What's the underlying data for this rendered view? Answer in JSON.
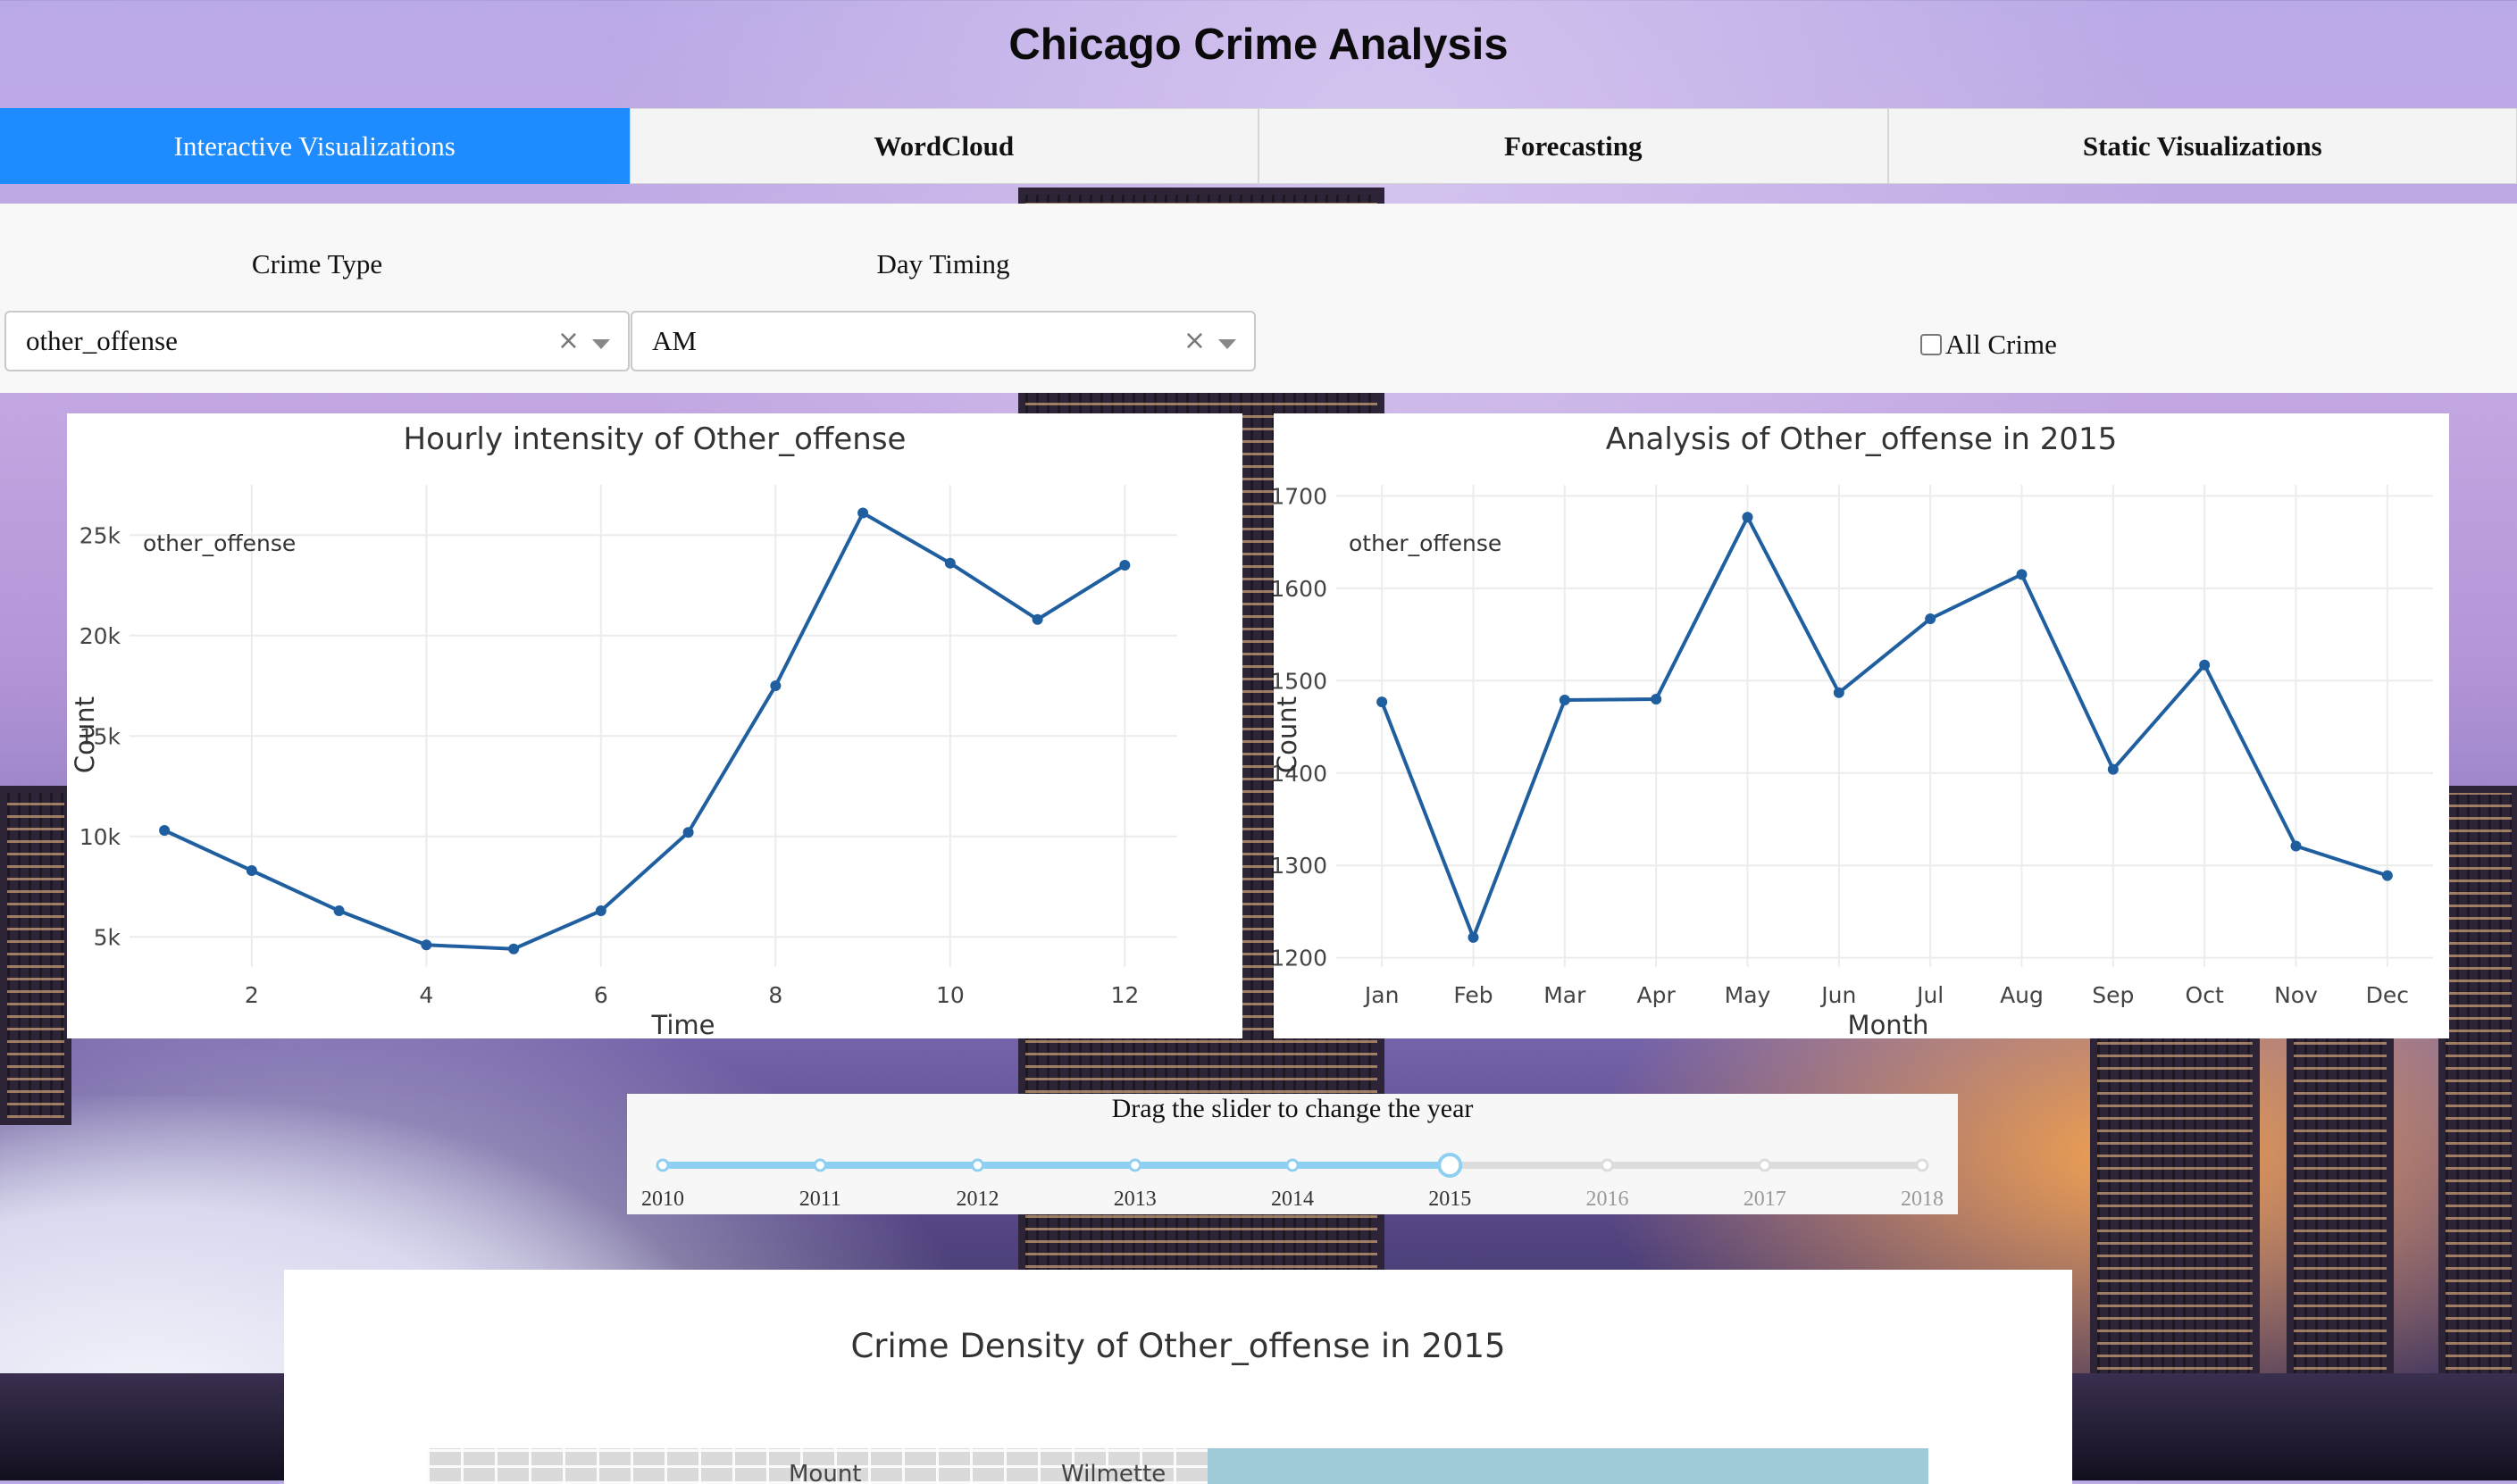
{
  "header": {
    "title": "Chicago Crime Analysis"
  },
  "tabs": [
    {
      "label": "Interactive Visualizations",
      "active": true
    },
    {
      "label": "WordCloud",
      "active": false
    },
    {
      "label": "Forecasting",
      "active": false
    },
    {
      "label": "Static Visualizations",
      "active": false
    }
  ],
  "controls": {
    "crime_type": {
      "label": "Crime Type",
      "value": "other_offense"
    },
    "day_timing": {
      "label": "Day Timing",
      "value": "AM"
    },
    "all_crime": {
      "label": "All Crime",
      "checked": false
    },
    "clear_glyph": "×"
  },
  "chart_data": [
    {
      "type": "line",
      "title": "Hourly intensity of Other_offense",
      "xlabel": "Time",
      "ylabel": "Count",
      "legend": "other_offense",
      "x": [
        1,
        2,
        3,
        4,
        5,
        6,
        7,
        8,
        9,
        10,
        11,
        12
      ],
      "y": [
        10300,
        8300,
        6300,
        4600,
        4400,
        6300,
        10200,
        17500,
        26100,
        23600,
        20800,
        23500
      ],
      "xlim": [
        0.6,
        12.6
      ],
      "ylim": [
        3500,
        27500
      ],
      "xticks": [
        2,
        4,
        6,
        8,
        10,
        12
      ],
      "yticks": [
        5000,
        10000,
        15000,
        20000,
        25000
      ],
      "ytick_labels": [
        "5k",
        "10k",
        "15k",
        "20k",
        "25k"
      ],
      "color": "#1f5f9f"
    },
    {
      "type": "line",
      "title": "Analysis of Other_offense in 2015",
      "xlabel": "Month",
      "ylabel": "Count",
      "legend": "other_offense",
      "categories": [
        "Jan",
        "Feb",
        "Mar",
        "Apr",
        "May",
        "Jun",
        "Jul",
        "Aug",
        "Sep",
        "Oct",
        "Nov",
        "Dec"
      ],
      "y": [
        1477,
        1222,
        1479,
        1480,
        1677,
        1487,
        1567,
        1615,
        1404,
        1517,
        1321,
        1289
      ],
      "ylim": [
        1190,
        1712
      ],
      "yticks": [
        1200,
        1300,
        1400,
        1500,
        1600,
        1700
      ],
      "ytick_labels": [
        "1200",
        "1300",
        "1400",
        "1500",
        "1600",
        "1700"
      ],
      "color": "#1f5f9f"
    }
  ],
  "slider": {
    "title": "Drag the slider to change the year",
    "years": [
      "2010",
      "2011",
      "2012",
      "2013",
      "2014",
      "2015",
      "2016",
      "2017",
      "2018"
    ],
    "selected": "2015",
    "active_color": "#8fd0f2",
    "inactive_color": "#dcdcdc"
  },
  "map": {
    "title": "Crime Density of Other_offense in 2015",
    "labels": [
      "Mount",
      "Wilmette"
    ]
  }
}
